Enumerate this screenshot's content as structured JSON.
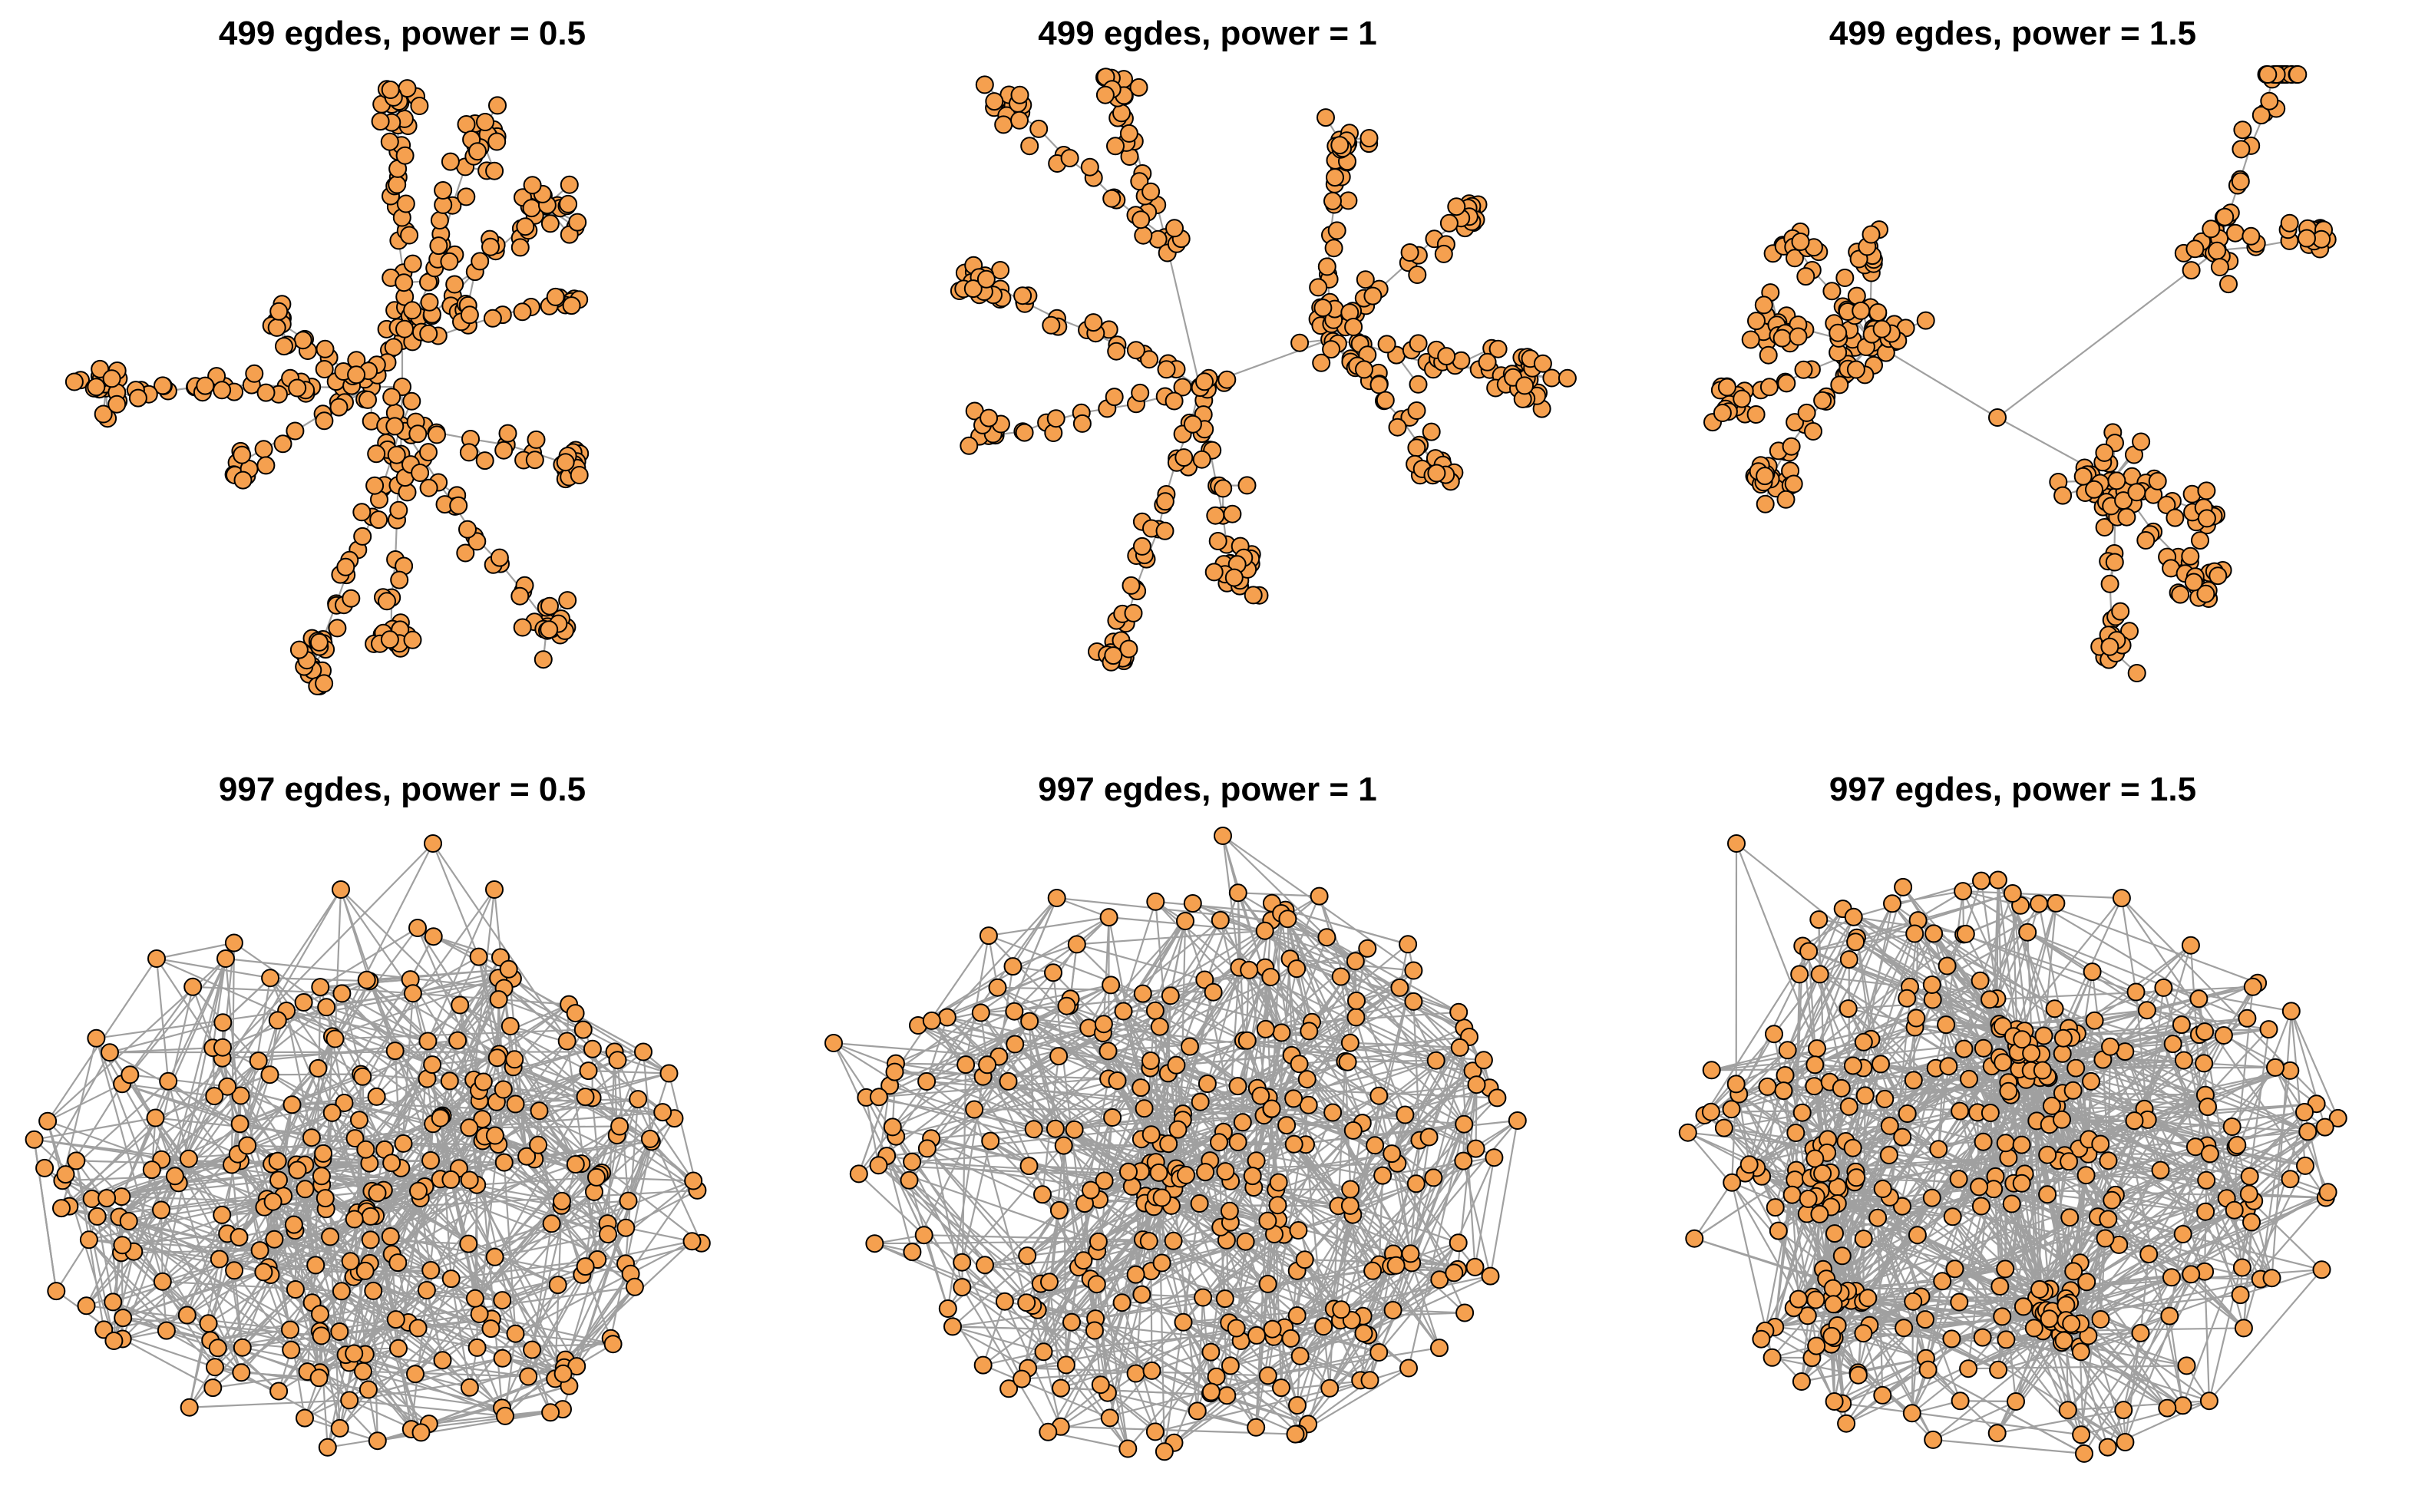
{
  "figure": {
    "style": {
      "background": "#ffffff",
      "node_fill": "#f5a04f",
      "node_stroke": "#000000",
      "edge_color": "#a0a0a0"
    },
    "panels": [
      {
        "title": "499 egdes, power = 0.5",
        "edges": 499,
        "power": 0.5,
        "layout": "tree-radial"
      },
      {
        "title": "499 egdes, power = 1",
        "edges": 499,
        "power": 1,
        "layout": "tree-branches"
      },
      {
        "title": "499 egdes, power = 1.5",
        "edges": 499,
        "power": 1.5,
        "layout": "tree-hubs"
      },
      {
        "title": "997 egdes, power = 0.5",
        "edges": 997,
        "power": 0.5,
        "layout": "dense-cloud"
      },
      {
        "title": "997 egdes, power = 1",
        "edges": 997,
        "power": 1,
        "layout": "dense-cloud"
      },
      {
        "title": "997 egdes, power = 1.5",
        "edges": 997,
        "power": 1.5,
        "layout": "dense-hubs"
      }
    ]
  }
}
